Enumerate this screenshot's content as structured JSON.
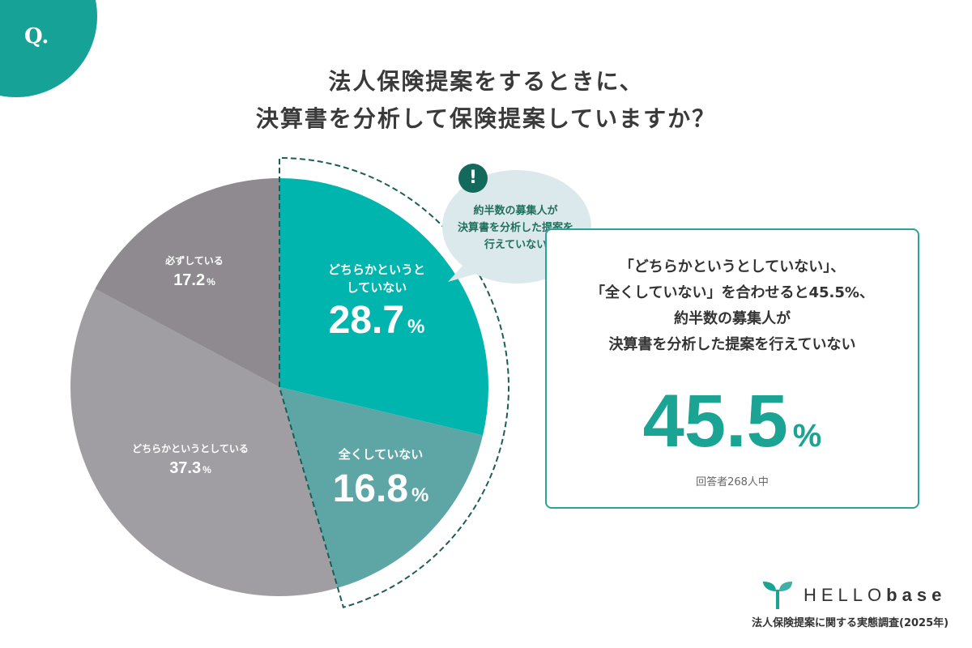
{
  "badge": {
    "label": "Q."
  },
  "title": {
    "line1": "法人保険提案をするときに、",
    "line2": "決算書を分析して保険提案していますか？"
  },
  "chart_data": {
    "type": "pie",
    "title": "法人保険提案をするときに、決算書を分析して保険提案していますか？",
    "start_angle": "12 o'clock, clockwise",
    "categories": [
      "どちらかというとしていない",
      "全くしていない",
      "どちらかというとしている",
      "必ずしている"
    ],
    "values": [
      28.7,
      16.8,
      37.3,
      17.2
    ],
    "unit": "%",
    "colors": [
      "#00b5ad",
      "#5ea6a6",
      "#a19ea3",
      "#8e8a90"
    ],
    "highlight": {
      "slices": [
        "どちらかというとしていない",
        "全くしていない"
      ],
      "total": 45.5,
      "style": "dashed outline"
    }
  },
  "slices": {
    "s1": {
      "caption_l1": "どちらかというと",
      "caption_l2": "していない",
      "value": "28.7",
      "unit": "%"
    },
    "s2": {
      "caption": "全くしていない",
      "value": "16.8",
      "unit": "%"
    },
    "s3": {
      "caption": "どちらかというとしている",
      "value": "37.3",
      "unit": "%"
    },
    "s4": {
      "caption": "必ずしている",
      "value": "17.2",
      "unit": "%"
    }
  },
  "callout": {
    "icon": "exclamation-icon",
    "line1": "約半数の募集人が",
    "line2": "決算書を分析した提案を",
    "line3": "行えていない"
  },
  "summary": {
    "line1": "「どちらかというとしていない」、",
    "line2": "「全くしていない」を合わせると45.5%、",
    "line3": "約半数の募集人が",
    "line4": "決算書を分析した提案を行えていない",
    "value": "45.5",
    "unit": "%",
    "respondents": "回答者268人中"
  },
  "footer": {
    "logo_light": "HELLO",
    "logo_bold": "base",
    "source": "法人保険提案に関する実態調査(2025年)"
  },
  "colors": {
    "accent": "#16a296",
    "dark_accent": "#13695b"
  }
}
